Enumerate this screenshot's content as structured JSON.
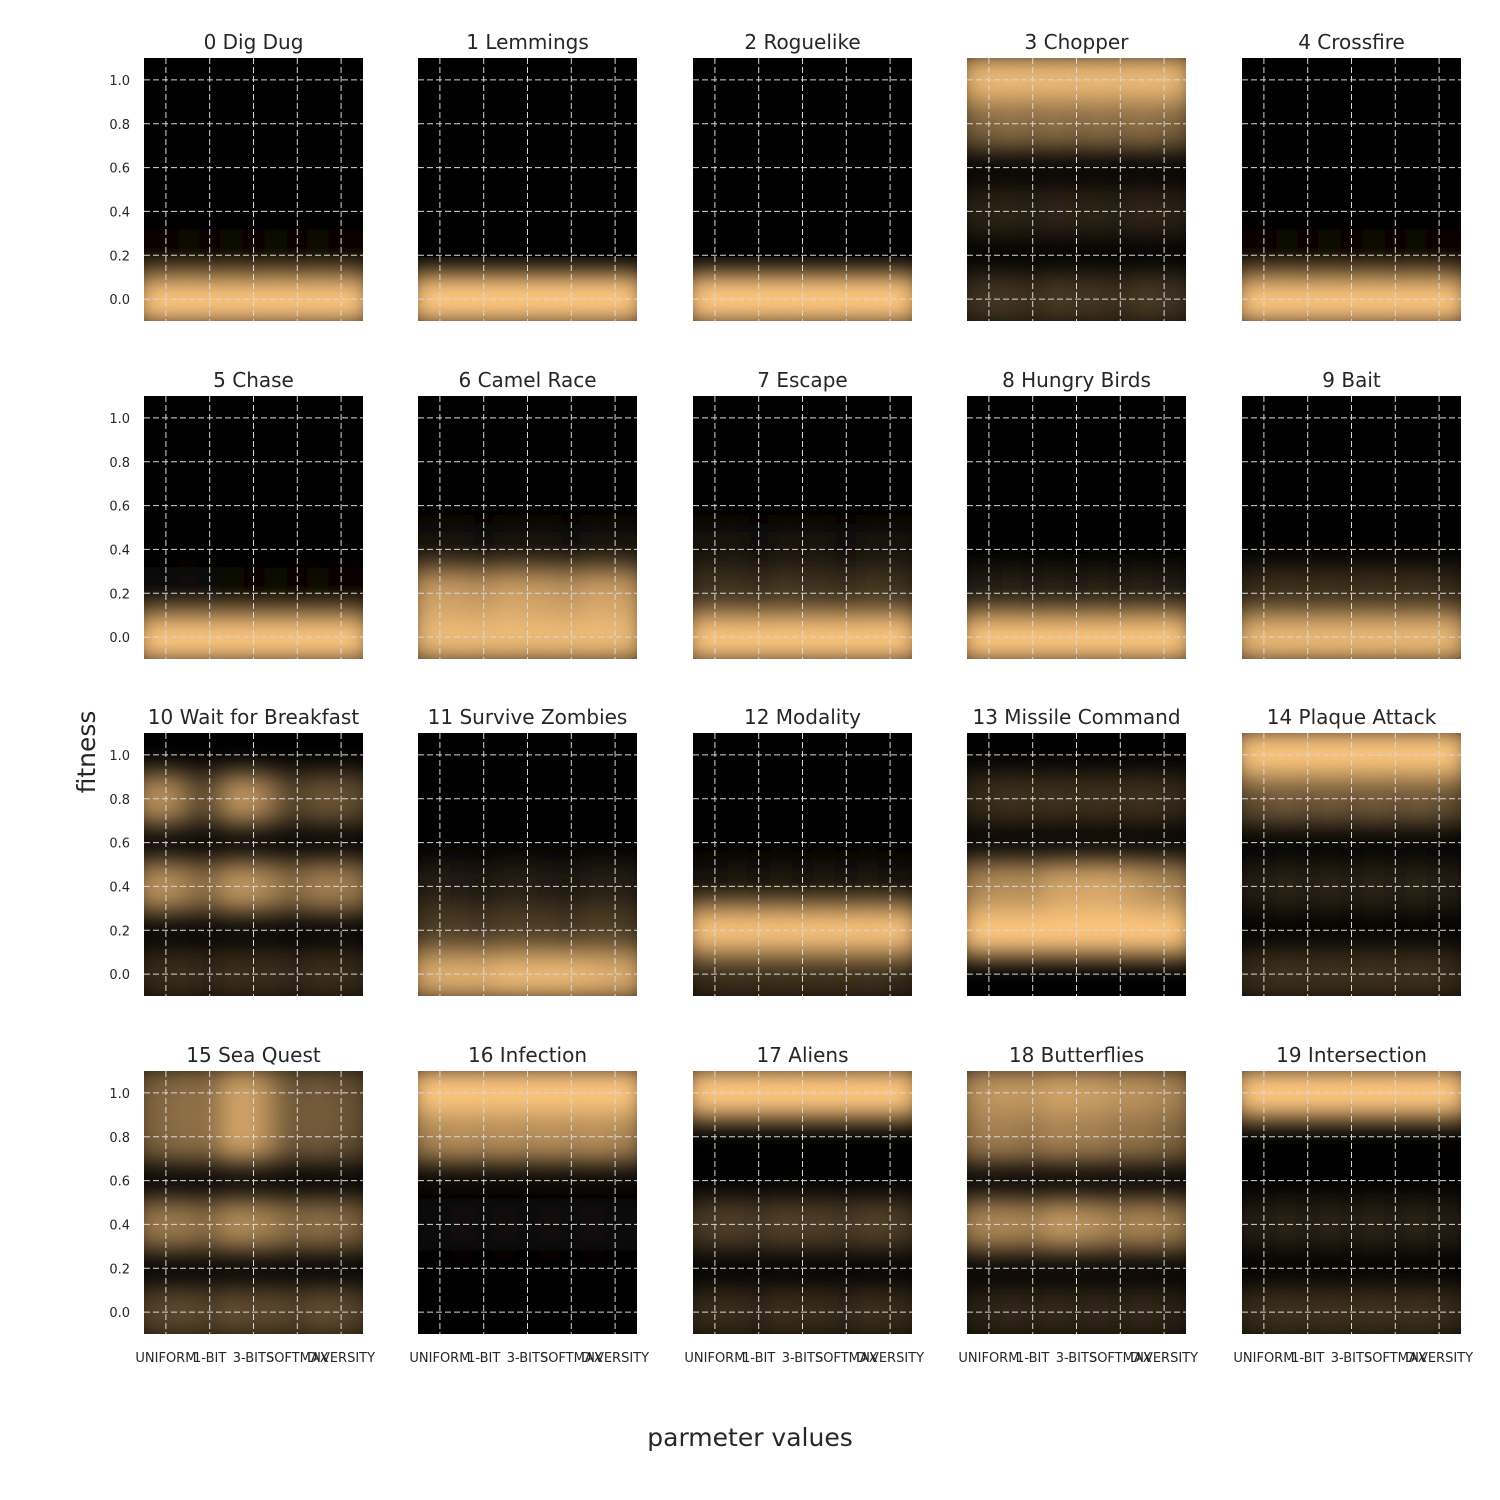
{
  "chart_data": {
    "type": "heatmap",
    "xlabel": "parmeter values",
    "ylabel": "fitness",
    "categories": [
      "UNIFORM",
      "1-BIT",
      "3-BITS",
      "SOFTMAX",
      "DIVERSITY"
    ],
    "yticks": [
      0.0,
      0.2,
      0.4,
      0.6,
      0.8,
      1.0
    ],
    "ytick_labels": [
      "0.0",
      "0.2",
      "0.4",
      "0.6",
      "0.8",
      "1.0"
    ],
    "ylim": [
      -0.1,
      1.1
    ],
    "grid": true,
    "colormap": "copper",
    "color_low": "#000000",
    "color_high": "#ffc77f",
    "density_note_values_are_relative_0_to_1": true,
    "panels": [
      {
        "title": "0 Dig Dug",
        "densities": {
          "0.0": [
            1,
            1,
            1,
            1,
            1
          ],
          "0.2": [
            0.05,
            0.05,
            0.05,
            0.05,
            0.05
          ]
        }
      },
      {
        "title": "1 Lemmings",
        "densities": {
          "0.0": [
            1,
            1,
            1,
            1,
            1
          ]
        }
      },
      {
        "title": "2 Roguelike",
        "densities": {
          "0.0": [
            1,
            1,
            1,
            1,
            1
          ]
        }
      },
      {
        "title": "3 Chopper",
        "densities": {
          "1.0": [
            0.95,
            0.95,
            0.95,
            0.95,
            0.95
          ],
          "0.8": [
            0.6,
            0.6,
            0.6,
            0.6,
            0.6
          ],
          "0.4": [
            0.25,
            0.2,
            0.25,
            0.2,
            0.25
          ],
          "0.0": [
            0.35,
            0.3,
            0.35,
            0.3,
            0.35
          ]
        }
      },
      {
        "title": "4 Crossfire",
        "densities": {
          "0.0": [
            1,
            1,
            1,
            1,
            1
          ],
          "0.2": [
            0.05,
            0.05,
            0.05,
            0.05,
            0.05
          ]
        }
      },
      {
        "title": "5 Chase",
        "densities": {
          "0.0": [
            1,
            1,
            1,
            1,
            1
          ],
          "0.2": [
            0.1,
            0.1,
            0.05,
            0.05,
            0.05
          ]
        }
      },
      {
        "title": "6 Camel Race",
        "densities": {
          "0.0": [
            0.95,
            0.95,
            0.95,
            0.95,
            0.95
          ],
          "0.2": [
            0.85,
            0.8,
            0.85,
            0.8,
            0.85
          ],
          "0.4": [
            0.15,
            0.1,
            0.15,
            0.1,
            0.15
          ]
        }
      },
      {
        "title": "7 Escape",
        "densities": {
          "0.0": [
            1,
            1,
            1,
            1,
            1
          ],
          "0.2": [
            0.35,
            0.3,
            0.35,
            0.3,
            0.35
          ],
          "0.4": [
            0.15,
            0.1,
            0.15,
            0.1,
            0.15
          ]
        }
      },
      {
        "title": "8 Hungry Birds",
        "densities": {
          "0.0": [
            1,
            1,
            1,
            1,
            1
          ],
          "0.2": [
            0.2,
            0.2,
            0.2,
            0.2,
            0.2
          ]
        }
      },
      {
        "title": "9 Bait",
        "densities": {
          "0.0": [
            0.95,
            0.95,
            0.95,
            0.95,
            0.95
          ],
          "0.2": [
            0.3,
            0.3,
            0.3,
            0.3,
            0.3
          ]
        }
      },
      {
        "title": "10 Wait for Breakfast",
        "densities": {
          "0.8": [
            0.8,
            0.4,
            0.8,
            0.4,
            0.5
          ],
          "0.4": [
            0.8,
            0.6,
            0.8,
            0.6,
            0.7
          ],
          "0.0": [
            0.3,
            0.25,
            0.3,
            0.25,
            0.3
          ]
        }
      },
      {
        "title": "11 Survive Zombies",
        "densities": {
          "0.0": [
            0.9,
            0.9,
            0.95,
            0.95,
            0.9
          ],
          "0.2": [
            0.4,
            0.35,
            0.4,
            0.35,
            0.4
          ],
          "0.4": [
            0.2,
            0.15,
            0.2,
            0.15,
            0.2
          ]
        }
      },
      {
        "title": "12 Modality",
        "densities": {
          "0.2": [
            1,
            1,
            1,
            1,
            1
          ],
          "0.0": [
            0.3,
            0.3,
            0.3,
            0.3,
            0.3
          ],
          "0.4": [
            0.15,
            0.15,
            0.15,
            0.15,
            0.15
          ]
        }
      },
      {
        "title": "13 Missile Command",
        "densities": {
          "0.2": [
            1,
            1,
            1,
            1,
            1
          ],
          "0.4": [
            0.75,
            0.75,
            0.85,
            0.85,
            0.75
          ],
          "0.8": [
            0.3,
            0.3,
            0.3,
            0.3,
            0.3
          ]
        }
      },
      {
        "title": "14 Plaque Attack",
        "densities": {
          "1.0": [
            1,
            1,
            1,
            1,
            1
          ],
          "0.8": [
            0.5,
            0.5,
            0.5,
            0.5,
            0.5
          ],
          "0.4": [
            0.2,
            0.2,
            0.2,
            0.2,
            0.2
          ],
          "0.0": [
            0.3,
            0.3,
            0.3,
            0.3,
            0.3
          ]
        }
      },
      {
        "title": "15 Sea Quest",
        "densities": {
          "1.0": [
            0.6,
            0.6,
            0.85,
            0.5,
            0.5
          ],
          "0.8": [
            0.6,
            0.6,
            0.85,
            0.5,
            0.5
          ],
          "0.4": [
            0.7,
            0.6,
            0.75,
            0.6,
            0.6
          ],
          "0.0": [
            0.45,
            0.4,
            0.45,
            0.4,
            0.45
          ]
        }
      },
      {
        "title": "16 Infection",
        "densities": {
          "1.0": [
            1,
            1,
            1,
            1,
            1
          ],
          "0.8": [
            0.75,
            0.75,
            0.75,
            0.75,
            0.75
          ],
          "0.4": [
            0.1,
            0.1,
            0.1,
            0.1,
            0.1
          ]
        }
      },
      {
        "title": "17 Aliens",
        "densities": {
          "1.0": [
            1,
            1,
            1,
            1,
            1
          ],
          "0.4": [
            0.4,
            0.35,
            0.4,
            0.35,
            0.4
          ],
          "0.0": [
            0.3,
            0.25,
            0.3,
            0.25,
            0.3
          ]
        }
      },
      {
        "title": "18 Butterflies",
        "densities": {
          "1.0": [
            0.8,
            0.8,
            0.85,
            0.8,
            0.75
          ],
          "0.8": [
            0.7,
            0.65,
            0.7,
            0.65,
            0.6
          ],
          "0.4": [
            0.75,
            0.7,
            0.8,
            0.7,
            0.7
          ],
          "0.0": [
            0.25,
            0.25,
            0.25,
            0.25,
            0.25
          ]
        }
      },
      {
        "title": "19 Intersection",
        "densities": {
          "1.0": [
            1,
            1,
            1,
            1,
            1
          ],
          "0.4": [
            0.2,
            0.2,
            0.2,
            0.2,
            0.2
          ],
          "0.0": [
            0.3,
            0.3,
            0.3,
            0.3,
            0.3
          ]
        }
      }
    ]
  }
}
